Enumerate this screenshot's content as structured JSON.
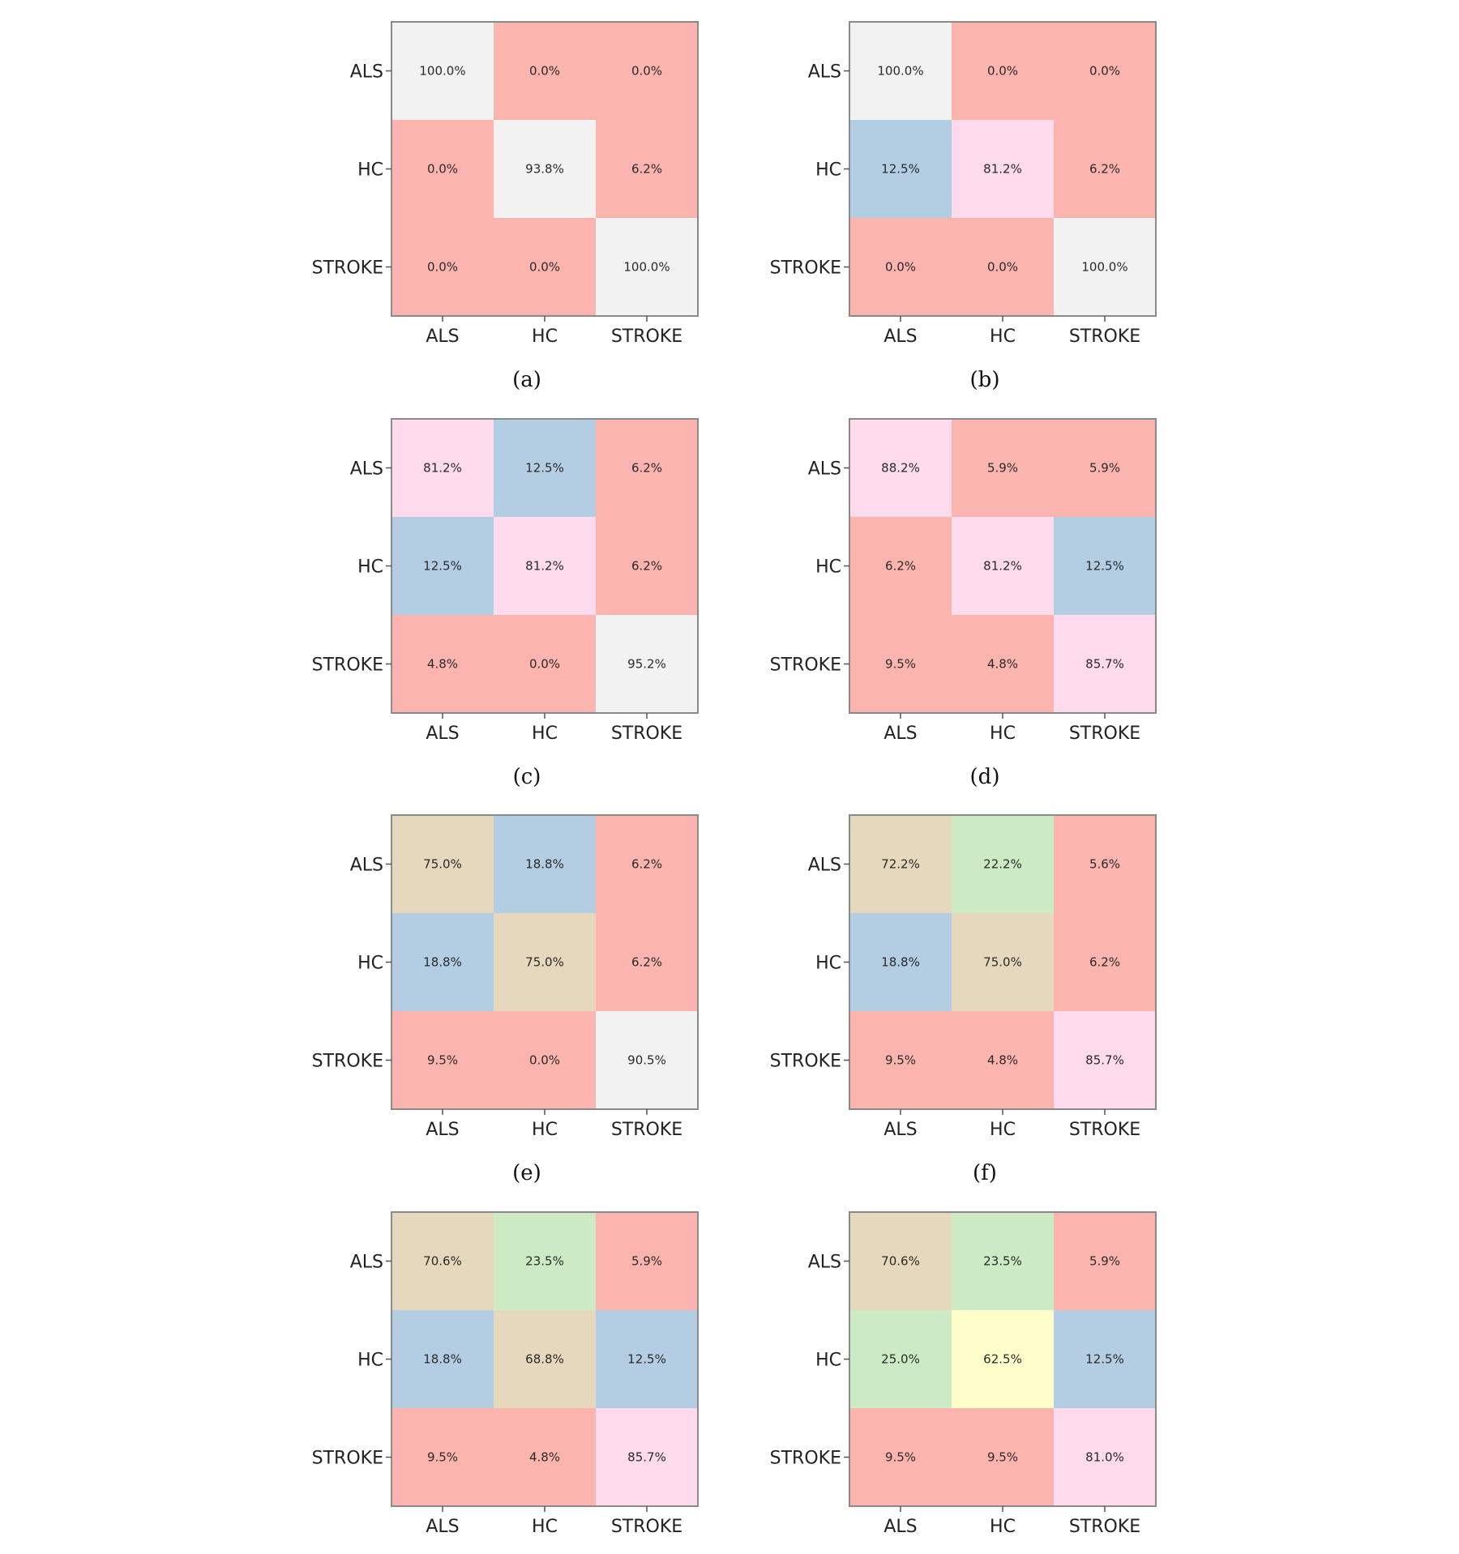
{
  "chart_data": [
    {
      "type": "heatmap",
      "caption": "(a)",
      "row_labels": [
        "ALS",
        "HC",
        "STROKE"
      ],
      "col_labels": [
        "ALS",
        "HC",
        "STROKE"
      ],
      "values": [
        [
          100.0,
          0.0,
          0.0
        ],
        [
          0.0,
          93.8,
          6.2
        ],
        [
          0.0,
          0.0,
          100.0
        ]
      ],
      "cell_text": [
        [
          "100.0%",
          "0.0%",
          "0.0%"
        ],
        [
          "0.0%",
          "93.8%",
          "6.2%"
        ],
        [
          "0.0%",
          "0.0%",
          "100.0%"
        ]
      ],
      "cell_colors": [
        [
          "#f2f2f2",
          "#fbb4ae",
          "#fbb4ae"
        ],
        [
          "#fbb4ae",
          "#f2f2f2",
          "#fbb4ae"
        ],
        [
          "#fbb4ae",
          "#fbb4ae",
          "#f2f2f2"
        ]
      ]
    },
    {
      "type": "heatmap",
      "caption": "(b)",
      "row_labels": [
        "ALS",
        "HC",
        "STROKE"
      ],
      "col_labels": [
        "ALS",
        "HC",
        "STROKE"
      ],
      "values": [
        [
          100.0,
          0.0,
          0.0
        ],
        [
          12.5,
          81.2,
          6.2
        ],
        [
          0.0,
          0.0,
          100.0
        ]
      ],
      "cell_text": [
        [
          "100.0%",
          "0.0%",
          "0.0%"
        ],
        [
          "12.5%",
          "81.2%",
          "6.2%"
        ],
        [
          "0.0%",
          "0.0%",
          "100.0%"
        ]
      ],
      "cell_colors": [
        [
          "#f2f2f2",
          "#fbb4ae",
          "#fbb4ae"
        ],
        [
          "#b3cde3",
          "#fddaec",
          "#fbb4ae"
        ],
        [
          "#fbb4ae",
          "#fbb4ae",
          "#f2f2f2"
        ]
      ]
    },
    {
      "type": "heatmap",
      "caption": "(c)",
      "row_labels": [
        "ALS",
        "HC",
        "STROKE"
      ],
      "col_labels": [
        "ALS",
        "HC",
        "STROKE"
      ],
      "values": [
        [
          81.2,
          12.5,
          6.2
        ],
        [
          12.5,
          81.2,
          6.2
        ],
        [
          4.8,
          0.0,
          95.2
        ]
      ],
      "cell_text": [
        [
          "81.2%",
          "12.5%",
          "6.2%"
        ],
        [
          "12.5%",
          "81.2%",
          "6.2%"
        ],
        [
          "4.8%",
          "0.0%",
          "95.2%"
        ]
      ],
      "cell_colors": [
        [
          "#fddaec",
          "#b3cde3",
          "#fbb4ae"
        ],
        [
          "#b3cde3",
          "#fddaec",
          "#fbb4ae"
        ],
        [
          "#fbb4ae",
          "#fbb4ae",
          "#f2f2f2"
        ]
      ]
    },
    {
      "type": "heatmap",
      "caption": "(d)",
      "row_labels": [
        "ALS",
        "HC",
        "STROKE"
      ],
      "col_labels": [
        "ALS",
        "HC",
        "STROKE"
      ],
      "values": [
        [
          88.2,
          5.9,
          5.9
        ],
        [
          6.2,
          81.2,
          12.5
        ],
        [
          9.5,
          4.8,
          85.7
        ]
      ],
      "cell_text": [
        [
          "88.2%",
          "5.9%",
          "5.9%"
        ],
        [
          "6.2%",
          "81.2%",
          "12.5%"
        ],
        [
          "9.5%",
          "4.8%",
          "85.7%"
        ]
      ],
      "cell_colors": [
        [
          "#fddaec",
          "#fbb4ae",
          "#fbb4ae"
        ],
        [
          "#fbb4ae",
          "#fddaec",
          "#b3cde3"
        ],
        [
          "#fbb4ae",
          "#fbb4ae",
          "#fddaec"
        ]
      ]
    },
    {
      "type": "heatmap",
      "caption": "(e)",
      "row_labels": [
        "ALS",
        "HC",
        "STROKE"
      ],
      "col_labels": [
        "ALS",
        "HC",
        "STROKE"
      ],
      "values": [
        [
          75.0,
          18.8,
          6.2
        ],
        [
          18.8,
          75.0,
          6.2
        ],
        [
          9.5,
          0.0,
          90.5
        ]
      ],
      "cell_text": [
        [
          "75.0%",
          "18.8%",
          "6.2%"
        ],
        [
          "18.8%",
          "75.0%",
          "6.2%"
        ],
        [
          "9.5%",
          "0.0%",
          "90.5%"
        ]
      ],
      "cell_colors": [
        [
          "#e5d8bd",
          "#b3cde3",
          "#fbb4ae"
        ],
        [
          "#b3cde3",
          "#e5d8bd",
          "#fbb4ae"
        ],
        [
          "#fbb4ae",
          "#fbb4ae",
          "#f2f2f2"
        ]
      ]
    },
    {
      "type": "heatmap",
      "caption": "(f)",
      "row_labels": [
        "ALS",
        "HC",
        "STROKE"
      ],
      "col_labels": [
        "ALS",
        "HC",
        "STROKE"
      ],
      "values": [
        [
          72.2,
          22.2,
          5.6
        ],
        [
          18.8,
          75.0,
          6.2
        ],
        [
          9.5,
          4.8,
          85.7
        ]
      ],
      "cell_text": [
        [
          "72.2%",
          "22.2%",
          "5.6%"
        ],
        [
          "18.8%",
          "75.0%",
          "6.2%"
        ],
        [
          "9.5%",
          "4.8%",
          "85.7%"
        ]
      ],
      "cell_colors": [
        [
          "#e5d8bd",
          "#ccebc5",
          "#fbb4ae"
        ],
        [
          "#b3cde3",
          "#e5d8bd",
          "#fbb4ae"
        ],
        [
          "#fbb4ae",
          "#fbb4ae",
          "#fddaec"
        ]
      ]
    },
    {
      "type": "heatmap",
      "caption": "",
      "row_labels": [
        "ALS",
        "HC",
        "STROKE"
      ],
      "col_labels": [
        "ALS",
        "HC",
        "STROKE"
      ],
      "values": [
        [
          70.6,
          23.5,
          5.9
        ],
        [
          18.8,
          68.8,
          12.5
        ],
        [
          9.5,
          4.8,
          85.7
        ]
      ],
      "cell_text": [
        [
          "70.6%",
          "23.5%",
          "5.9%"
        ],
        [
          "18.8%",
          "68.8%",
          "12.5%"
        ],
        [
          "9.5%",
          "4.8%",
          "85.7%"
        ]
      ],
      "cell_colors": [
        [
          "#e5d8bd",
          "#ccebc5",
          "#fbb4ae"
        ],
        [
          "#b3cde3",
          "#e5d8bd",
          "#b3cde3"
        ],
        [
          "#fbb4ae",
          "#fbb4ae",
          "#fddaec"
        ]
      ]
    },
    {
      "type": "heatmap",
      "caption": "",
      "row_labels": [
        "ALS",
        "HC",
        "STROKE"
      ],
      "col_labels": [
        "ALS",
        "HC",
        "STROKE"
      ],
      "values": [
        [
          70.6,
          23.5,
          5.9
        ],
        [
          25.0,
          62.5,
          12.5
        ],
        [
          9.5,
          9.5,
          81.0
        ]
      ],
      "cell_text": [
        [
          "70.6%",
          "23.5%",
          "5.9%"
        ],
        [
          "25.0%",
          "62.5%",
          "12.5%"
        ],
        [
          "9.5%",
          "9.5%",
          "81.0%"
        ]
      ],
      "cell_colors": [
        [
          "#e5d8bd",
          "#ccebc5",
          "#fbb4ae"
        ],
        [
          "#ccebc5",
          "#ffffcc",
          "#b3cde3"
        ],
        [
          "#fbb4ae",
          "#fbb4ae",
          "#fddaec"
        ]
      ]
    }
  ]
}
